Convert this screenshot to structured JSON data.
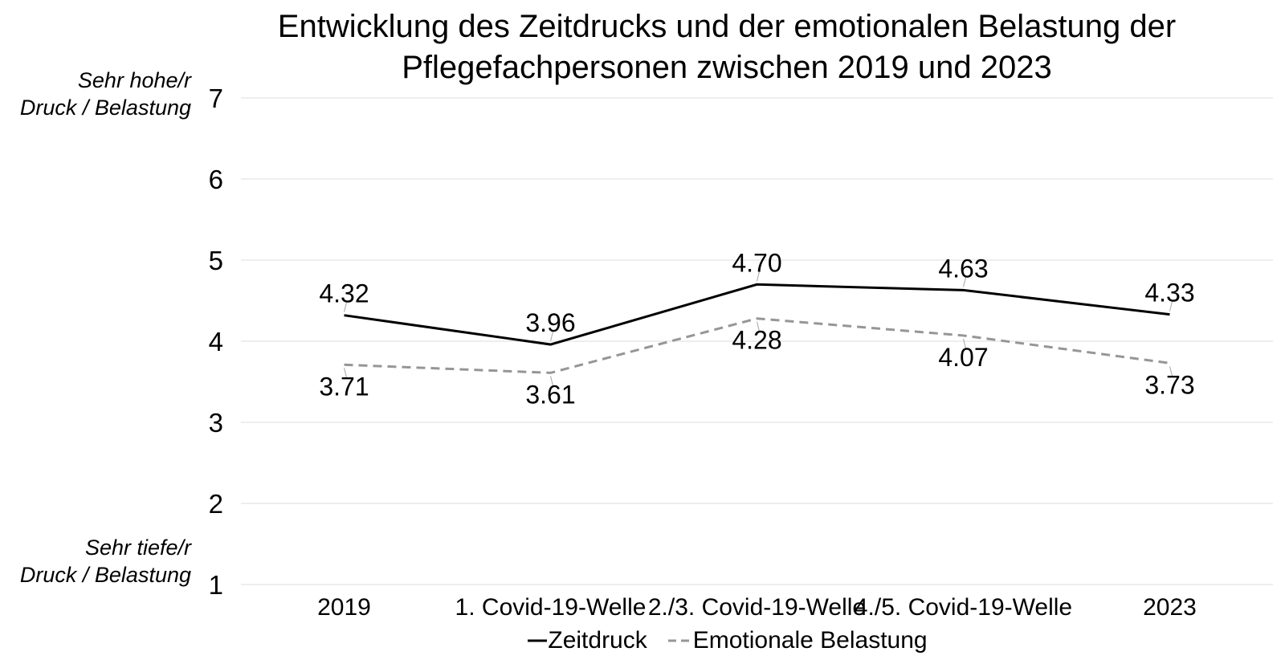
{
  "title": {
    "lines": [
      "Entwicklung des Zeitdrucks und der emotionalen Belastung der",
      "Pflegefachpersonen zwischen 2019 und 2023"
    ]
  },
  "y_axis": {
    "high_label": {
      "lines": [
        "Sehr hohe/r",
        "Druck / Belastung"
      ]
    },
    "low_label": {
      "lines": [
        "Sehr tiefe/r",
        "Druck / Belastung"
      ]
    }
  },
  "chart_data": {
    "type": "line",
    "title": "Entwicklung des Zeitdrucks und der emotionalen Belastung der Pflegefachpersonen zwischen 2019 und 2023",
    "categories": [
      "2019",
      "1. Covid-19-Welle",
      "2./3. Covid-19-Welle",
      "4./5. Covid-19-Welle",
      "2023"
    ],
    "series": [
      {
        "name": "Zeitdruck",
        "values": [
          4.32,
          3.96,
          4.7,
          4.63,
          4.33
        ],
        "labels": [
          "4.32",
          "3.96",
          "4.70",
          "4.63",
          "4.33"
        ],
        "line_style": "solid",
        "color": "#000000",
        "label_position": "above"
      },
      {
        "name": "Emotionale Belastung",
        "values": [
          3.71,
          3.61,
          4.28,
          4.07,
          3.73
        ],
        "labels": [
          "3.71",
          "3.61",
          "4.28",
          "4.07",
          "3.73"
        ],
        "line_style": "dashed",
        "color": "#969696",
        "label_position": "below"
      }
    ],
    "ylim": [
      1,
      7
    ],
    "yticks": [
      7,
      6,
      5,
      4,
      3,
      2,
      1
    ],
    "grid": true,
    "legend_position": "bottom",
    "ylabel_top": "Sehr hohe/r Druck / Belastung",
    "ylabel_bottom": "Sehr tiefe/r Druck / Belastung",
    "colors": {
      "gridline": "#e9e9e9",
      "data_label": "#000000",
      "tick_label": "#000000",
      "leader_line": "#a6a6a6"
    }
  }
}
